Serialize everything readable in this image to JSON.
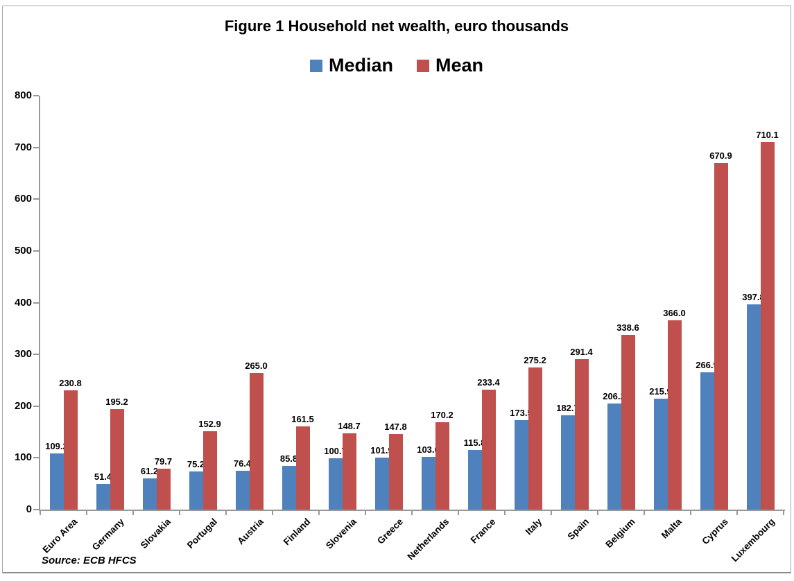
{
  "chart_data": {
    "type": "bar",
    "title": "Figure 1 Household net wealth, euro thousands",
    "xlabel": "",
    "ylabel": "",
    "categories": [
      "Euro Area",
      "Germany",
      "Slovakia",
      "Portugal",
      "Austria",
      "Finland",
      "Slovenia",
      "Greece",
      "Netherlands",
      "France",
      "Italy",
      "Spain",
      "Belgium",
      "Malta",
      "Cyprus",
      "Luxembourg"
    ],
    "series": [
      {
        "name": "Median",
        "color": "#4F81BD",
        "values": [
          109.2,
          51.4,
          61.2,
          75.2,
          76.4,
          85.8,
          100.7,
          101.9,
          103.6,
          115.8,
          173.5,
          182.7,
          206.2,
          215.9,
          266.9,
          397.8
        ]
      },
      {
        "name": "Mean",
        "color": "#C0504D",
        "values": [
          230.8,
          195.2,
          79.7,
          152.9,
          265.0,
          161.5,
          148.7,
          147.8,
          170.2,
          233.4,
          275.2,
          291.4,
          338.6,
          366.0,
          670.9,
          710.1
        ]
      }
    ],
    "ylim": [
      0,
      800
    ],
    "yticks": [
      0,
      100,
      200,
      300,
      400,
      500,
      600,
      700,
      800
    ],
    "grid": false,
    "legend_position": "top-center",
    "data_labels": true,
    "value_format": "1-decimal",
    "source": "Source: ECB HFCS",
    "axis_color": "#989898",
    "text_color": "#000000"
  }
}
